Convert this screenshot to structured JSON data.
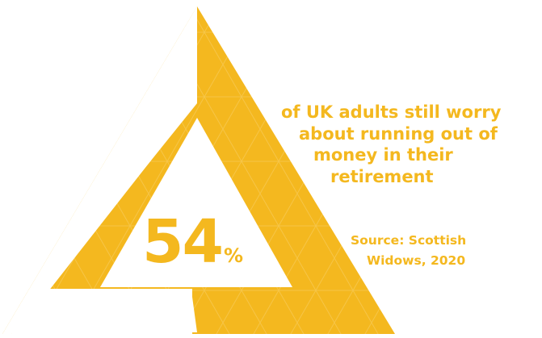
{
  "colors": {
    "accent": "#f4b81f",
    "background": "#ffffff"
  },
  "stat": {
    "value": "54",
    "unit": "%"
  },
  "headline": {
    "lines": [
      "of UK adults still worry",
      "about running out of",
      "money in their",
      "retirement"
    ]
  },
  "source": {
    "lines": [
      "Source: Scottish",
      "Widows, 2020"
    ]
  }
}
